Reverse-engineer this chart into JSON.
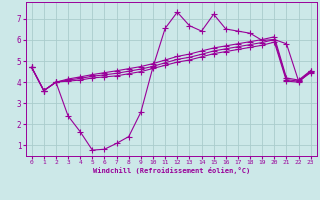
{
  "xlabel": "Windchill (Refroidissement éolien,°C)",
  "bg_color": "#cce8e8",
  "line_color": "#990099",
  "grid_color": "#aacccc",
  "xlim": [
    -0.5,
    23.5
  ],
  "ylim": [
    0.5,
    7.8
  ],
  "xticks": [
    0,
    1,
    2,
    3,
    4,
    5,
    6,
    7,
    8,
    9,
    10,
    11,
    12,
    13,
    14,
    15,
    16,
    17,
    18,
    19,
    20,
    21,
    22,
    23
  ],
  "yticks": [
    1,
    2,
    3,
    4,
    5,
    6,
    7
  ],
  "line1_x": [
    0,
    1,
    2,
    3,
    4,
    5,
    6,
    7,
    8,
    9,
    10,
    11,
    12,
    13,
    14,
    15,
    16,
    17,
    18,
    19,
    20,
    21,
    22,
    23
  ],
  "line1_y": [
    4.7,
    3.6,
    4.0,
    4.05,
    4.1,
    4.2,
    4.25,
    4.3,
    4.4,
    4.5,
    4.65,
    4.8,
    4.95,
    5.05,
    5.2,
    5.35,
    5.45,
    5.55,
    5.65,
    5.75,
    5.9,
    4.05,
    4.0,
    4.5
  ],
  "line2_x": [
    0,
    1,
    2,
    3,
    4,
    5,
    6,
    7,
    8,
    9,
    10,
    11,
    12,
    13,
    14,
    15,
    16,
    17,
    18,
    19,
    20,
    21,
    22,
    23
  ],
  "line2_y": [
    4.7,
    3.6,
    4.0,
    4.1,
    4.18,
    4.28,
    4.35,
    4.42,
    4.52,
    4.62,
    4.75,
    4.92,
    5.08,
    5.18,
    5.32,
    5.48,
    5.58,
    5.68,
    5.78,
    5.88,
    6.02,
    4.12,
    4.05,
    4.52
  ],
  "line3_x": [
    0,
    1,
    2,
    3,
    4,
    5,
    6,
    7,
    8,
    9,
    10,
    11,
    12,
    13,
    14,
    15,
    16,
    17,
    18,
    19,
    20,
    21,
    22,
    23
  ],
  "line3_y": [
    4.7,
    3.6,
    4.0,
    4.15,
    4.25,
    4.36,
    4.45,
    4.54,
    4.64,
    4.74,
    4.88,
    5.05,
    5.22,
    5.33,
    5.48,
    5.62,
    5.72,
    5.82,
    5.92,
    6.02,
    6.15,
    4.2,
    4.1,
    4.55
  ],
  "line4_x": [
    0,
    1,
    2,
    3,
    4,
    5,
    6,
    7,
    8,
    9,
    10,
    11,
    12,
    13,
    14,
    15,
    16,
    17,
    18,
    19,
    20,
    21,
    22,
    23
  ],
  "line4_y": [
    4.7,
    3.6,
    4.0,
    2.4,
    1.65,
    0.78,
    0.82,
    1.1,
    1.42,
    2.58,
    4.72,
    6.55,
    7.32,
    6.68,
    6.42,
    7.22,
    6.52,
    6.42,
    6.32,
    5.98,
    6.02,
    5.82,
    4.05,
    4.45
  ]
}
